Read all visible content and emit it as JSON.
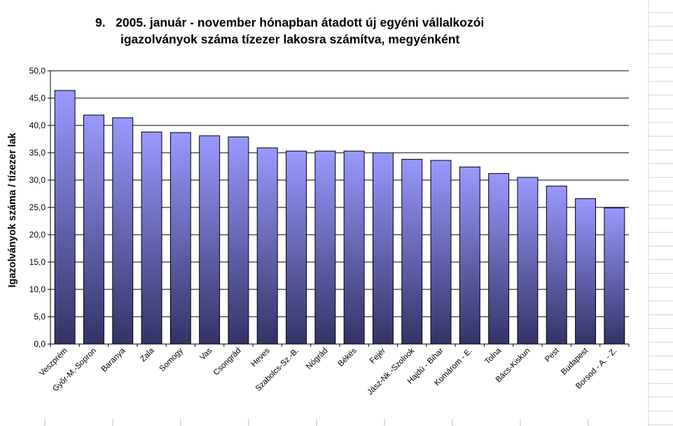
{
  "chart_data": {
    "type": "bar",
    "title_line1": "9.   2005. január - november hónapban átadott új egyéni vállalkozói",
    "title_line2": "igazolványok száma tízezer lakosra számítva, megyénként",
    "ylabel": "Igazolványok száma / tízezer lak",
    "xlabel": "",
    "ylim": [
      0,
      50
    ],
    "yticks": [
      "0,0",
      "5,0",
      "10,0",
      "15,0",
      "20,0",
      "25,0",
      "30,0",
      "35,0",
      "40,0",
      "45,0",
      "50,0"
    ],
    "categories": [
      "Veszprém",
      "Győr-M.-Sopron",
      "Baranya",
      "Zala",
      "Somogy",
      "Vas",
      "Csongrád",
      "Heves",
      "Szabolcs-Sz.-B.",
      "Nógrád",
      "Békés",
      "Fejér",
      "Jász-Nk.-Szolnok",
      "Hajdú - Bihar",
      "Komárom - E.",
      "Tolna",
      "Bács-Kiskun",
      "Pest",
      "Budapest",
      "Borsod - A. - Z."
    ],
    "values": [
      46.4,
      41.9,
      41.4,
      38.8,
      38.7,
      38.1,
      37.9,
      35.9,
      35.3,
      35.3,
      35.3,
      35.0,
      33.8,
      33.6,
      32.4,
      31.2,
      30.5,
      28.9,
      26.6,
      24.9
    ],
    "grid": true,
    "legend": "none",
    "colors": {
      "bar_top": "#9999ff",
      "bar_bottom": "#333366",
      "bar_stroke": "#000000",
      "grid": "#000000"
    }
  }
}
